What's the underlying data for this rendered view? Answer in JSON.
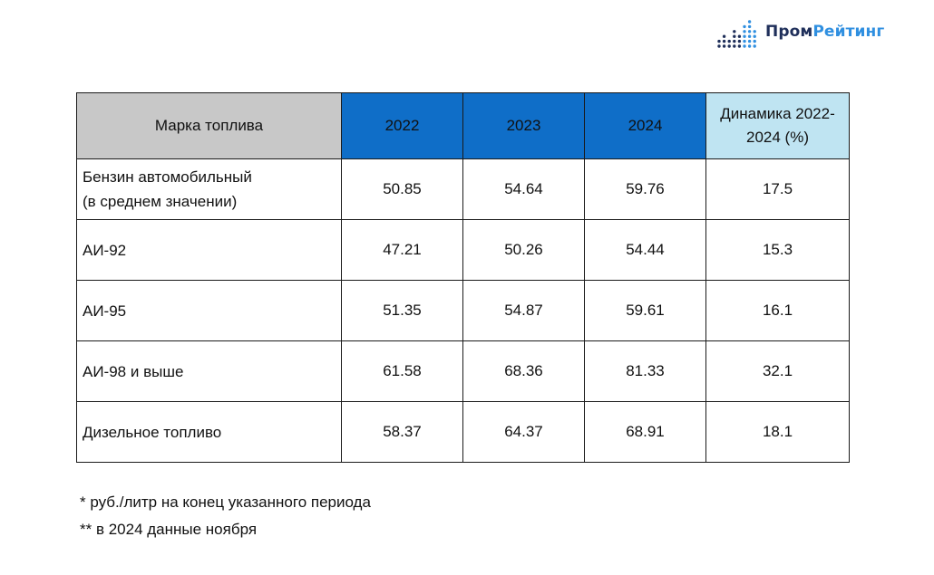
{
  "logo": {
    "name_part1": "Пром",
    "name_part2": "Рейтинг",
    "icon": "bar-dots-icon",
    "colors": {
      "dark": "#1f2f5a",
      "accent": "#2f8fe0"
    }
  },
  "table": {
    "headers": {
      "name": "Марка топлива",
      "years": [
        "2022",
        "2023",
        "2024"
      ],
      "dynamics_line1": "Динамика 2022-",
      "dynamics_line2": "2024 (%)"
    },
    "rows": [
      {
        "name_line1": "Бензин автомобильный",
        "name_line2": "(в среднем значении)",
        "v2022": "50.85",
        "v2023": "54.64",
        "v2024": "59.76",
        "dynamics": "17.5"
      },
      {
        "name_line1": "АИ-92",
        "name_line2": "",
        "v2022": "47.21",
        "v2023": "50.26",
        "v2024": "54.44",
        "dynamics": "15.3"
      },
      {
        "name_line1": "АИ-95",
        "name_line2": "",
        "v2022": "51.35",
        "v2023": "54.87",
        "v2024": "59.61",
        "dynamics": "16.1"
      },
      {
        "name_line1": "АИ-98 и выше",
        "name_line2": "",
        "v2022": "61.58",
        "v2023": "68.36",
        "v2024": "81.33",
        "dynamics": "32.1"
      },
      {
        "name_line1": "Дизельное топливо",
        "name_line2": "",
        "v2022": "58.37",
        "v2023": "64.37",
        "v2024": "68.91",
        "dynamics": "18.1"
      }
    ],
    "colors": {
      "name_header_bg": "#c8c8c8",
      "year_header_bg": "#0f6ec8",
      "dynamics_header_bg": "#bfe4f2"
    }
  },
  "footnotes": [
    "* руб./литр на конец указанного периода",
    "** в 2024 данные ноября"
  ]
}
